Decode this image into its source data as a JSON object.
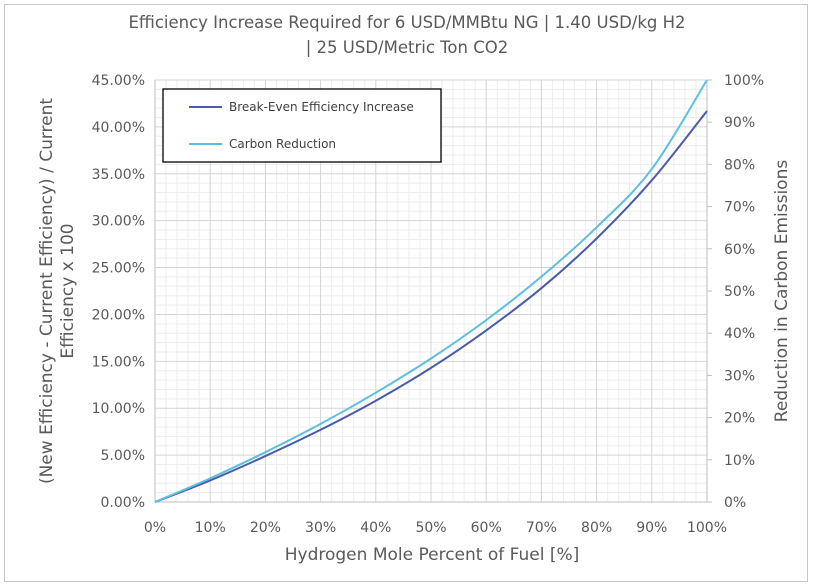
{
  "chart_data": {
    "type": "line",
    "title_lines": [
      "Efficiency Increase Required for 6 USD/MMBtu NG | 1.40 USD/kg H2",
      "| 25 USD/Metric Ton CO2"
    ],
    "xlabel": "Hydrogen Mole Percent of Fuel [%]",
    "ylabel_lines": [
      "(New Efficiency - Current Efficiency) / Current",
      "Efficiency x 100"
    ],
    "y2label": "Reduction in Carbon Emissions",
    "x_ticks": [
      "0%",
      "10%",
      "20%",
      "30%",
      "40%",
      "50%",
      "60%",
      "70%",
      "80%",
      "90%",
      "100%"
    ],
    "y_ticks": [
      "0.00%",
      "5.00%",
      "10.00%",
      "15.00%",
      "20.00%",
      "25.00%",
      "30.00%",
      "35.00%",
      "40.00%",
      "45.00%"
    ],
    "y2_ticks": [
      "0%",
      "10%",
      "20%",
      "30%",
      "40%",
      "50%",
      "60%",
      "70%",
      "80%",
      "90%",
      "100%"
    ],
    "xlim": [
      0,
      100
    ],
    "ylim": [
      0,
      45
    ],
    "y2lim": [
      0,
      100
    ],
    "grid": true,
    "legend_position": "top-left",
    "x": [
      0,
      10,
      20,
      30,
      40,
      50,
      60,
      70,
      80,
      90,
      100
    ],
    "series": [
      {
        "name": "Break-Even Efficiency Increase",
        "axis": "left",
        "color": "#4a5ba8",
        "values": [
          0,
          2.3,
          4.9,
          7.7,
          10.8,
          14.3,
          18.3,
          22.8,
          28.1,
          34.3,
          41.7
        ]
      },
      {
        "name": "Carbon Reduction",
        "axis": "right",
        "color": "#5bc0de",
        "values": [
          0,
          5.6,
          11.8,
          18.5,
          25.9,
          34.0,
          43.1,
          53.4,
          65.1,
          78.9,
          100
        ]
      }
    ]
  }
}
